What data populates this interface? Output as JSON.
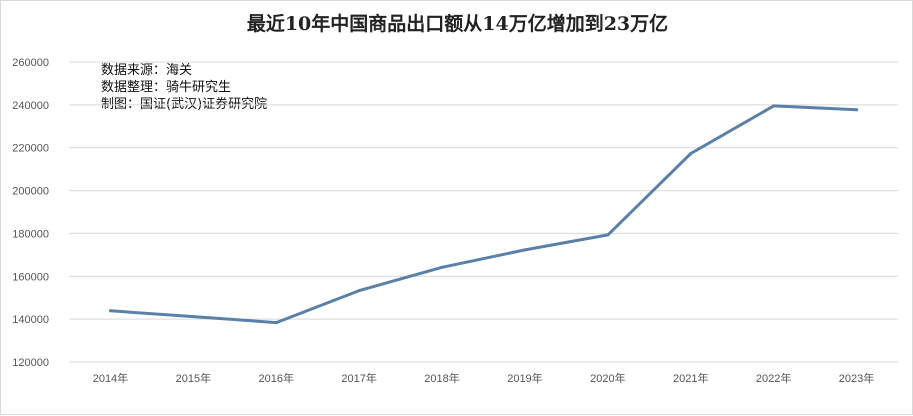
{
  "chart_data": {
    "type": "line",
    "title": "最近10年中国商品出口额从14万亿增加到23万亿",
    "notes": [
      "数据来源：海关",
      "数据整理：骑牛研究生",
      "制图：国证(武汉)证券研究院"
    ],
    "categories": [
      "2014年",
      "2015年",
      "2016年",
      "2017年",
      "2018年",
      "2019年",
      "2020年",
      "2021年",
      "2022年",
      "2023年"
    ],
    "series": [
      {
        "values": [
          143900,
          141200,
          138400,
          153300,
          164200,
          172300,
          179300,
          217300,
          239500,
          237700
        ]
      }
    ],
    "ylim": [
      120000,
      260000
    ],
    "yticks": [
      120000,
      140000,
      160000,
      180000,
      200000,
      220000,
      240000,
      260000
    ],
    "xlabel": "",
    "ylabel": "",
    "grid": true,
    "line_color": "#5b80a8",
    "grid_color": "#d9d9d9"
  }
}
